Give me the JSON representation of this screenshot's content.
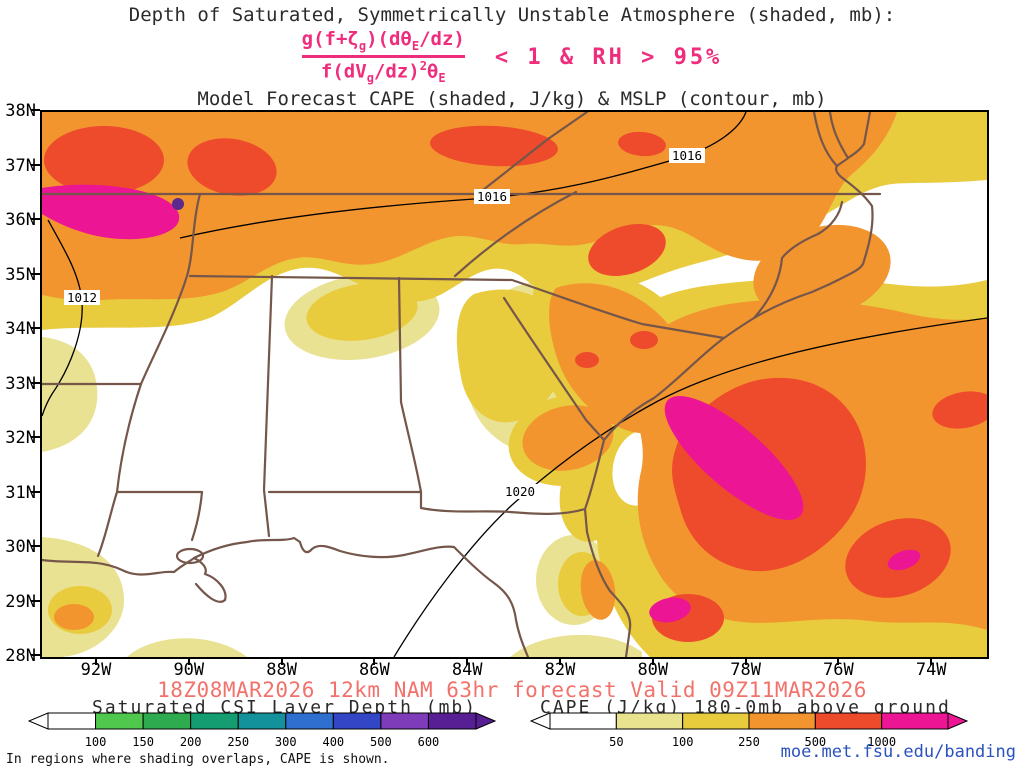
{
  "header": {
    "line1": "Depth of Saturated, Symmetrically Unstable Atmosphere (shaded, mb):",
    "line3": "Model Forecast CAPE (shaded, J/kg) & MSLP (contour, mb)",
    "formula": {
      "color": "#ee2d7d",
      "num_pre": "g(f+ζ",
      "num_sub1": "g",
      "num_mid": ")(dθ",
      "num_sub2": "E",
      "num_post": "/dz)",
      "den_pre": "f(dV",
      "den_sub1": "g",
      "den_mid": "/dz)",
      "den_sup": "2",
      "den_theta": "θ",
      "den_sub2": "E",
      "condition": "< 1 & RH > 95%"
    }
  },
  "map": {
    "lat_labels": [
      "38N",
      "37N",
      "36N",
      "35N",
      "34N",
      "33N",
      "32N",
      "31N",
      "30N",
      "29N",
      "28N"
    ],
    "lon_labels": [
      "92W",
      "90W",
      "88W",
      "86W",
      "84W",
      "82W",
      "80W",
      "78W",
      "76W",
      "74W"
    ],
    "contour_labels": [
      {
        "text": "1012"
      },
      {
        "text": "1016"
      },
      {
        "text": "1016"
      },
      {
        "text": "1020"
      }
    ]
  },
  "footer": {
    "forecast_line": "18Z08MAR2026 12km NAM 63hr forecast Valid 09Z11MAR2026",
    "forecast_color": "#f3716b",
    "left_legend_title": "Saturated CSI Layer Depth (mb)",
    "right_legend_title": "CAPE (J/kg) 180-0mb above ground",
    "note": "In regions where shading overlaps, CAPE is shown.",
    "link": "moe.met.fsu.edu/banding",
    "link_color": "#2a52be"
  },
  "colorbars": {
    "csi": {
      "ticks": [
        "100",
        "150",
        "200",
        "250",
        "300",
        "400",
        "500",
        "600"
      ],
      "colors": [
        "#ffffff",
        "#50c84d",
        "#2fab4f",
        "#159d72",
        "#13929b",
        "#2f6fd0",
        "#3347c6",
        "#7e3cba",
        "#571f93"
      ]
    },
    "cape": {
      "ticks": [
        "50",
        "100",
        "250",
        "500",
        "1000"
      ],
      "colors": [
        "#ffffff",
        "#e9e28f",
        "#e9cb3e",
        "#f2952f",
        "#ee4a2c",
        "#ec1694"
      ]
    }
  },
  "chart_data": {
    "type": "heatmap",
    "subtype": "filled-contour weather map with MSLP line contours",
    "region": "Southeastern United States and western Atlantic",
    "title": "Model Forecast CAPE (shaded, J/kg) & MSLP (contour, mb)",
    "x": {
      "label": "longitude",
      "ticks": [
        "92W",
        "90W",
        "88W",
        "86W",
        "84W",
        "82W",
        "80W",
        "78W",
        "76W",
        "74W"
      ]
    },
    "y": {
      "label": "latitude",
      "ticks": [
        "38N",
        "37N",
        "36N",
        "35N",
        "34N",
        "33N",
        "32N",
        "31N",
        "30N",
        "29N",
        "28N"
      ]
    },
    "shaded_fields": [
      {
        "name": "CAPE 180-0mb above ground",
        "units": "J/kg",
        "levels": [
          50,
          100,
          250,
          500,
          1000
        ],
        "colors": [
          "#ffffff",
          "#e9e28f",
          "#e9cb3e",
          "#f2952f",
          "#ee4a2c",
          "#ec1694"
        ]
      },
      {
        "name": "Saturated CSI Layer Depth",
        "units": "mb",
        "levels": [
          100,
          150,
          200,
          250,
          300,
          400,
          500,
          600
        ],
        "colors": [
          "#ffffff",
          "#50c84d",
          "#2fab4f",
          "#159d72",
          "#13929b",
          "#2f6fd0",
          "#3347c6",
          "#7e3cba",
          "#571f93"
        ]
      }
    ],
    "contour_field": {
      "name": "MSLP",
      "units": "mb",
      "labeled_contours": [
        1012,
        1016,
        1016,
        1020
      ]
    },
    "notable_features": [
      "CAPE > 1000 J/kg (magenta) band over northeast Arkansas / Missouri bootheel near 90-92W 36N",
      "Broad 250-500 J/kg CAPE (orange) from Arkansas across Tennessee, Kentucky, Virginia and the Carolinas",
      "Elongated CAPE > 1000 J/kg (magenta) maximum offshore of the Georgia / north Florida Atlantic coast near 79-81W 29-31N",
      "Secondary red/magenta CAPE maxima offshore near 75-76W 30N and 79W 28.5N",
      "Mostly unshaded (low CAPE) over Louisiana, Mississippi and the Florida Panhandle",
      "Small purple CSI-depth area embedded in the northeast Arkansas shading"
    ]
  }
}
